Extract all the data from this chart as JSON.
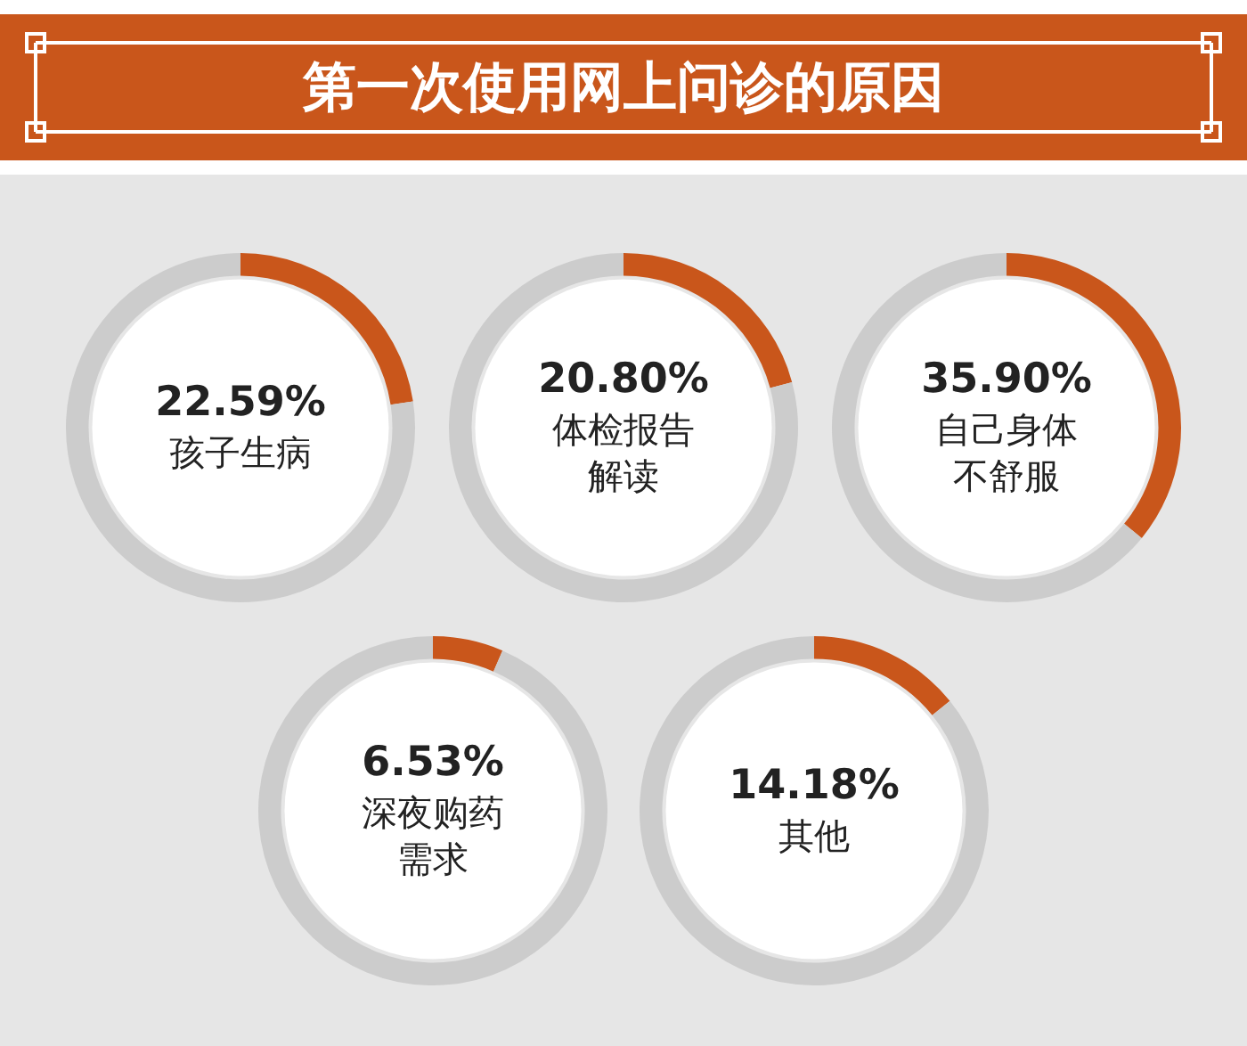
{
  "chart_data": [
    {
      "type": "donut",
      "title": "第一次使用网上问诊的原因",
      "categories": [
        "孩子生病",
        null
      ],
      "values": [
        22.59,
        77.41
      ],
      "colors": [
        "#c9561b",
        "#cccccc"
      ],
      "value_labels": [
        "22.59%",
        null
      ]
    },
    {
      "type": "donut",
      "categories": [
        "体检报告解读",
        null
      ],
      "values": [
        20.8,
        79.2
      ],
      "colors": [
        "#c9561b",
        "#cccccc"
      ],
      "value_labels": [
        "20.80%",
        null
      ]
    },
    {
      "type": "donut",
      "categories": [
        "自己身体不舒服",
        null
      ],
      "values": [
        35.9,
        64.1
      ],
      "colors": [
        "#c9561b",
        "#cccccc"
      ],
      "value_labels": [
        "35.90%",
        null
      ]
    },
    {
      "type": "donut",
      "categories": [
        "深夜购药需求",
        null
      ],
      "values": [
        6.53,
        93.47
      ],
      "colors": [
        "#c9561b",
        "#cccccc"
      ],
      "value_labels": [
        "6.53%",
        null
      ]
    },
    {
      "type": "donut",
      "categories": [
        "其他",
        null
      ],
      "values": [
        14.18,
        85.82
      ],
      "colors": [
        "#c9561b",
        "#cccccc"
      ],
      "value_labels": [
        "14.18%",
        null
      ]
    }
  ]
}
